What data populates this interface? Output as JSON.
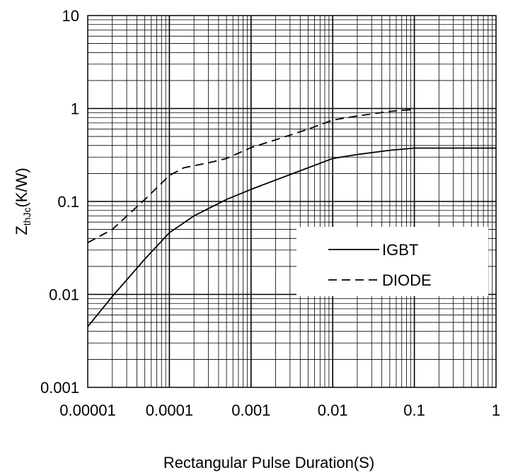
{
  "chart_data": {
    "type": "line",
    "title": "",
    "xlabel": "Rectangular Pulse Duration(S)",
    "ylabel": {
      "main": "Z",
      "sub": "thJc",
      "unit": "(K/W)"
    },
    "x_scale": "log",
    "y_scale": "log",
    "xlim": [
      1e-05,
      1
    ],
    "ylim": [
      0.001,
      10
    ],
    "x_tick_labels": [
      "0.00001",
      "0.0001",
      "0.001",
      "0.01",
      "0.1",
      "1"
    ],
    "y_tick_labels": [
      "0.001",
      "0.01",
      "0.1",
      "1",
      "10"
    ],
    "grid": true,
    "legend_position": "center-right",
    "series": [
      {
        "name": "IGBT",
        "style": "solid",
        "color": "#000000",
        "points": [
          [
            1e-05,
            0.0045
          ],
          [
            2e-05,
            0.0095
          ],
          [
            5e-05,
            0.024
          ],
          [
            0.0001,
            0.046
          ],
          [
            0.0002,
            0.07
          ],
          [
            0.0005,
            0.105
          ],
          [
            0.001,
            0.135
          ],
          [
            0.002,
            0.17
          ],
          [
            0.005,
            0.23
          ],
          [
            0.01,
            0.29
          ],
          [
            0.02,
            0.32
          ],
          [
            0.05,
            0.355
          ],
          [
            0.1,
            0.375
          ],
          [
            0.2,
            0.375
          ],
          [
            1,
            0.375
          ]
        ]
      },
      {
        "name": "DIODE",
        "style": "dashed",
        "color": "#000000",
        "points": [
          [
            1e-05,
            0.036
          ],
          [
            2e-05,
            0.05
          ],
          [
            5e-05,
            0.105
          ],
          [
            0.0001,
            0.19
          ],
          [
            0.00015,
            0.23
          ],
          [
            0.0003,
            0.26
          ],
          [
            0.0005,
            0.29
          ],
          [
            0.001,
            0.38
          ],
          [
            0.002,
            0.46
          ],
          [
            0.005,
            0.6
          ],
          [
            0.01,
            0.75
          ],
          [
            0.02,
            0.83
          ],
          [
            0.05,
            0.93
          ],
          [
            0.1,
            0.98
          ]
        ]
      }
    ]
  }
}
